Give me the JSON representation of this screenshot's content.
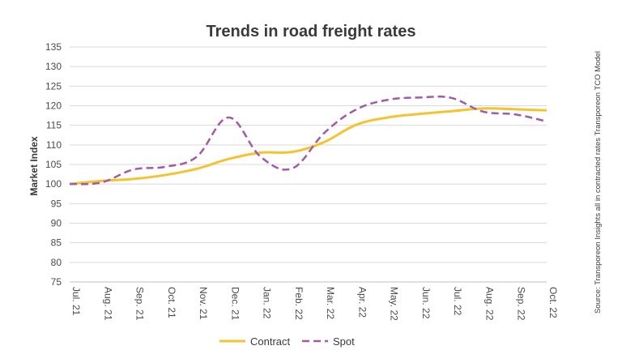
{
  "chart_data": {
    "type": "line",
    "title": "Trends in road freight rates",
    "ylabel": "Market Index",
    "xlabel": "",
    "source": "Source: Transporeon Insights all in contracted rates Transporeon TCO Model",
    "ylim": [
      75,
      135
    ],
    "yticks": [
      75,
      80,
      85,
      90,
      95,
      100,
      105,
      110,
      115,
      120,
      125,
      130,
      135
    ],
    "grid": true,
    "legend_position": "bottom-center",
    "categories": [
      "Jul. 21",
      "Aug. 21",
      "Sep. 21",
      "Oct. 21",
      "Nov. 21",
      "Dec. 21",
      "Jan. 22",
      "Feb. 22",
      "Mar. 22",
      "Apr. 22",
      "May. 22",
      "Jun. 22",
      "Jul. 22",
      "Aug. 22",
      "Sep. 22",
      "Oct. 22"
    ],
    "series": [
      {
        "name": "Contract",
        "color": "#f5c230",
        "style": "solid",
        "values": [
          100,
          100.8,
          101.3,
          102.3,
          103.9,
          106.4,
          108,
          108.2,
          110.7,
          115.1,
          117,
          117.9,
          118.6,
          119.3,
          119.1,
          118.8
        ]
      },
      {
        "name": "Spot",
        "color": "#a25aa6",
        "style": "dashed",
        "values": [
          100,
          100.4,
          103.7,
          104.4,
          107,
          117,
          107,
          104,
          113,
          119,
          121.5,
          122.1,
          122,
          118.5,
          117.8,
          116
        ]
      }
    ]
  }
}
